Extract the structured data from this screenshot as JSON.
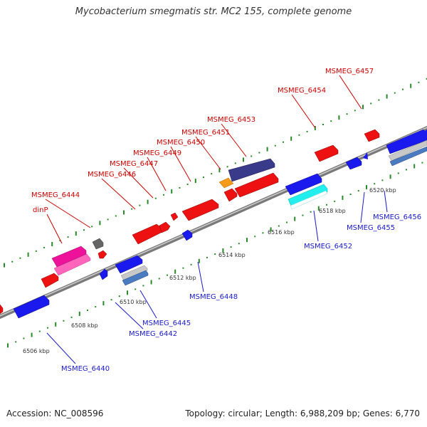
{
  "title": "Mycobacterium smegmatis str. MC2 155, complete genome",
  "footer": {
    "accession": "Accession: NC_008596",
    "summary": "Topology: circular; Length: 6,988,209 bp; Genes: 6,770"
  },
  "colors": {
    "forward_label": "#cc0000",
    "reverse_label": "#1a1acc",
    "backbone": "#8a8a8a",
    "tick": "#2a8a2a"
  },
  "scale_labels": [
    "6506 kbp",
    "6508 kbp",
    "6510 kbp",
    "6512 kbp",
    "6514 kbp",
    "6516 kbp",
    "6518 kbp",
    "6520 kbp"
  ],
  "forward_genes": [
    {
      "label": "MSMEG_6457"
    },
    {
      "label": "MSMEG_6454"
    },
    {
      "label": "MSMEG_6453"
    },
    {
      "label": "MSMEG_6451"
    },
    {
      "label": "MSMEG_6450"
    },
    {
      "label": "MSMEG_6449"
    },
    {
      "label": "MSMEG_6447"
    },
    {
      "label": "MSMEG_6446"
    },
    {
      "label": "MSMEG_6444"
    },
    {
      "label": "dinP"
    }
  ],
  "reverse_genes": [
    {
      "label": "MSMEG_6456"
    },
    {
      "label": "MSMEG_6455"
    },
    {
      "label": "MSMEG_6452"
    },
    {
      "label": "MSMEG_6448"
    },
    {
      "label": "MSMEG_6445"
    },
    {
      "label": "MSMEG_6442"
    },
    {
      "label": "MSMEG_6440"
    }
  ]
}
